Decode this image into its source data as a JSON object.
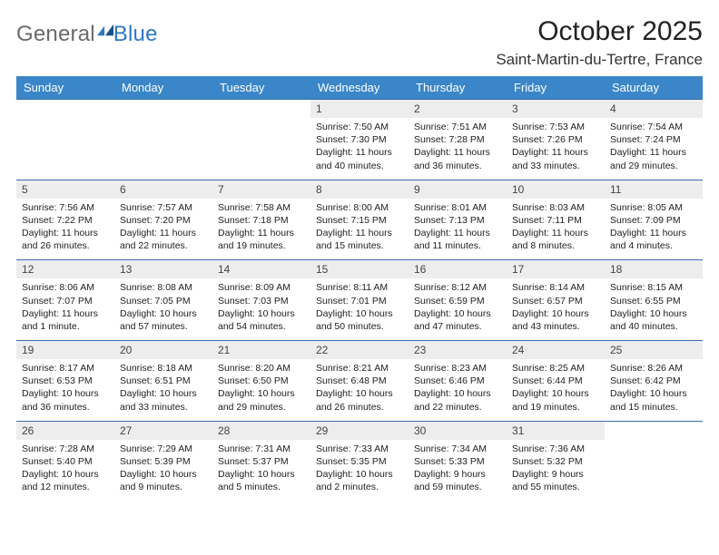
{
  "brand": {
    "part1": "General",
    "part2": "Blue"
  },
  "header": {
    "title": "October 2025",
    "location": "Saint-Martin-du-Tertre, France"
  },
  "colors": {
    "header_bg": "#3a86c8",
    "header_fg": "#ffffff",
    "rule": "#3a6ea8",
    "daynum_bg": "#ededed",
    "brand_gray": "#6a6a6a",
    "brand_blue": "#2f78c2"
  },
  "weekdays": [
    "Sunday",
    "Monday",
    "Tuesday",
    "Wednesday",
    "Thursday",
    "Friday",
    "Saturday"
  ],
  "weeks": [
    [
      {
        "empty": true
      },
      {
        "empty": true
      },
      {
        "empty": true
      },
      {
        "day": "1",
        "sunrise": "Sunrise: 7:50 AM",
        "sunset": "Sunset: 7:30 PM",
        "daylight": "Daylight: 11 hours and 40 minutes."
      },
      {
        "day": "2",
        "sunrise": "Sunrise: 7:51 AM",
        "sunset": "Sunset: 7:28 PM",
        "daylight": "Daylight: 11 hours and 36 minutes."
      },
      {
        "day": "3",
        "sunrise": "Sunrise: 7:53 AM",
        "sunset": "Sunset: 7:26 PM",
        "daylight": "Daylight: 11 hours and 33 minutes."
      },
      {
        "day": "4",
        "sunrise": "Sunrise: 7:54 AM",
        "sunset": "Sunset: 7:24 PM",
        "daylight": "Daylight: 11 hours and 29 minutes."
      }
    ],
    [
      {
        "day": "5",
        "sunrise": "Sunrise: 7:56 AM",
        "sunset": "Sunset: 7:22 PM",
        "daylight": "Daylight: 11 hours and 26 minutes."
      },
      {
        "day": "6",
        "sunrise": "Sunrise: 7:57 AM",
        "sunset": "Sunset: 7:20 PM",
        "daylight": "Daylight: 11 hours and 22 minutes."
      },
      {
        "day": "7",
        "sunrise": "Sunrise: 7:58 AM",
        "sunset": "Sunset: 7:18 PM",
        "daylight": "Daylight: 11 hours and 19 minutes."
      },
      {
        "day": "8",
        "sunrise": "Sunrise: 8:00 AM",
        "sunset": "Sunset: 7:15 PM",
        "daylight": "Daylight: 11 hours and 15 minutes."
      },
      {
        "day": "9",
        "sunrise": "Sunrise: 8:01 AM",
        "sunset": "Sunset: 7:13 PM",
        "daylight": "Daylight: 11 hours and 11 minutes."
      },
      {
        "day": "10",
        "sunrise": "Sunrise: 8:03 AM",
        "sunset": "Sunset: 7:11 PM",
        "daylight": "Daylight: 11 hours and 8 minutes."
      },
      {
        "day": "11",
        "sunrise": "Sunrise: 8:05 AM",
        "sunset": "Sunset: 7:09 PM",
        "daylight": "Daylight: 11 hours and 4 minutes."
      }
    ],
    [
      {
        "day": "12",
        "sunrise": "Sunrise: 8:06 AM",
        "sunset": "Sunset: 7:07 PM",
        "daylight": "Daylight: 11 hours and 1 minute."
      },
      {
        "day": "13",
        "sunrise": "Sunrise: 8:08 AM",
        "sunset": "Sunset: 7:05 PM",
        "daylight": "Daylight: 10 hours and 57 minutes."
      },
      {
        "day": "14",
        "sunrise": "Sunrise: 8:09 AM",
        "sunset": "Sunset: 7:03 PM",
        "daylight": "Daylight: 10 hours and 54 minutes."
      },
      {
        "day": "15",
        "sunrise": "Sunrise: 8:11 AM",
        "sunset": "Sunset: 7:01 PM",
        "daylight": "Daylight: 10 hours and 50 minutes."
      },
      {
        "day": "16",
        "sunrise": "Sunrise: 8:12 AM",
        "sunset": "Sunset: 6:59 PM",
        "daylight": "Daylight: 10 hours and 47 minutes."
      },
      {
        "day": "17",
        "sunrise": "Sunrise: 8:14 AM",
        "sunset": "Sunset: 6:57 PM",
        "daylight": "Daylight: 10 hours and 43 minutes."
      },
      {
        "day": "18",
        "sunrise": "Sunrise: 8:15 AM",
        "sunset": "Sunset: 6:55 PM",
        "daylight": "Daylight: 10 hours and 40 minutes."
      }
    ],
    [
      {
        "day": "19",
        "sunrise": "Sunrise: 8:17 AM",
        "sunset": "Sunset: 6:53 PM",
        "daylight": "Daylight: 10 hours and 36 minutes."
      },
      {
        "day": "20",
        "sunrise": "Sunrise: 8:18 AM",
        "sunset": "Sunset: 6:51 PM",
        "daylight": "Daylight: 10 hours and 33 minutes."
      },
      {
        "day": "21",
        "sunrise": "Sunrise: 8:20 AM",
        "sunset": "Sunset: 6:50 PM",
        "daylight": "Daylight: 10 hours and 29 minutes."
      },
      {
        "day": "22",
        "sunrise": "Sunrise: 8:21 AM",
        "sunset": "Sunset: 6:48 PM",
        "daylight": "Daylight: 10 hours and 26 minutes."
      },
      {
        "day": "23",
        "sunrise": "Sunrise: 8:23 AM",
        "sunset": "Sunset: 6:46 PM",
        "daylight": "Daylight: 10 hours and 22 minutes."
      },
      {
        "day": "24",
        "sunrise": "Sunrise: 8:25 AM",
        "sunset": "Sunset: 6:44 PM",
        "daylight": "Daylight: 10 hours and 19 minutes."
      },
      {
        "day": "25",
        "sunrise": "Sunrise: 8:26 AM",
        "sunset": "Sunset: 6:42 PM",
        "daylight": "Daylight: 10 hours and 15 minutes."
      }
    ],
    [
      {
        "day": "26",
        "sunrise": "Sunrise: 7:28 AM",
        "sunset": "Sunset: 5:40 PM",
        "daylight": "Daylight: 10 hours and 12 minutes."
      },
      {
        "day": "27",
        "sunrise": "Sunrise: 7:29 AM",
        "sunset": "Sunset: 5:39 PM",
        "daylight": "Daylight: 10 hours and 9 minutes."
      },
      {
        "day": "28",
        "sunrise": "Sunrise: 7:31 AM",
        "sunset": "Sunset: 5:37 PM",
        "daylight": "Daylight: 10 hours and 5 minutes."
      },
      {
        "day": "29",
        "sunrise": "Sunrise: 7:33 AM",
        "sunset": "Sunset: 5:35 PM",
        "daylight": "Daylight: 10 hours and 2 minutes."
      },
      {
        "day": "30",
        "sunrise": "Sunrise: 7:34 AM",
        "sunset": "Sunset: 5:33 PM",
        "daylight": "Daylight: 9 hours and 59 minutes."
      },
      {
        "day": "31",
        "sunrise": "Sunrise: 7:36 AM",
        "sunset": "Sunset: 5:32 PM",
        "daylight": "Daylight: 9 hours and 55 minutes."
      },
      {
        "empty": true
      }
    ]
  ]
}
